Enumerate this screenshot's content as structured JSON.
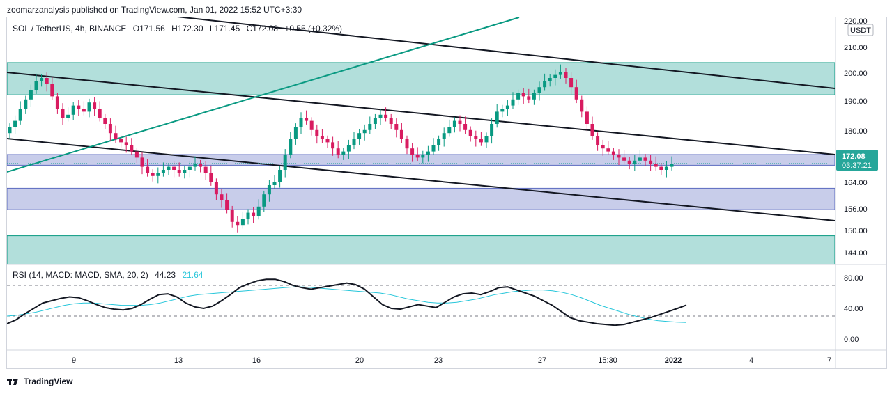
{
  "header": {
    "published_text": "zoomarzanalysis published on TradingView.com, Jan 01, 2022 15:52 UTC+3:30"
  },
  "legend": {
    "symbol": "SOL / TetherUS, 4h, BINANCE",
    "open": "O171.56",
    "high": "H172.30",
    "low": "L171.45",
    "close": "C172.08",
    "change": "+0.55 (+0.32%)"
  },
  "price_axis": {
    "currency_badge": "USDT",
    "ticks": [
      "220.00",
      "210.00",
      "200.00",
      "190.00",
      "180.00",
      "164.00",
      "156.00",
      "150.00",
      "144.00"
    ],
    "last_price": "172.08",
    "countdown": "03:37:21"
  },
  "rsi": {
    "legend": "RSI (14, MACD: MACD, SMA, 20, 2)",
    "value1": "44.23",
    "value2": "21.64",
    "ticks": [
      "80.00",
      "40.00",
      "0.00"
    ]
  },
  "time_axis": {
    "labels": [
      "9",
      "13",
      "16",
      "20",
      "23",
      "27",
      "15:30",
      "2022",
      "4",
      "7"
    ]
  },
  "footer": {
    "brand": "TradingView"
  },
  "colors": {
    "up": "#26a69a",
    "down": "#ef5350",
    "up_body": "#089981",
    "down_body": "#d81b60",
    "zone_green": "#b2dfdb",
    "zone_blue": "#c5cae9",
    "zone_blue_border": "#5c6bc0",
    "trend_black": "#131722",
    "trend_teal": "#089981",
    "rsi_line": "#131722",
    "rsi_signal": "#26c6da",
    "price_badge": "#26a69a"
  },
  "chart_data": {
    "type": "candlestick",
    "symbol": "SOL / TetherUS",
    "timeframe": "4h",
    "exchange": "BINANCE",
    "ylim": [
      140,
      222
    ],
    "x_labels": [
      "9",
      "13",
      "16",
      "20",
      "23",
      "27",
      "15:30",
      "2022",
      "4",
      "7"
    ],
    "closes": [
      184,
      186,
      190,
      193,
      196,
      199,
      200,
      198,
      194,
      190,
      187,
      188,
      191,
      190,
      189,
      192,
      190,
      187,
      185,
      182,
      180,
      179,
      178,
      176,
      174,
      171,
      169,
      168,
      169,
      170,
      171,
      170,
      169,
      170,
      171,
      172,
      171,
      169,
      166,
      162,
      160,
      157,
      153,
      152,
      154,
      156,
      155,
      158,
      162,
      165,
      166,
      170,
      175,
      180,
      184,
      187,
      186,
      183,
      181,
      180,
      179,
      177,
      175,
      176,
      178,
      180,
      182,
      183,
      185,
      187,
      188,
      187,
      185,
      183,
      180,
      177,
      175,
      174,
      175,
      176,
      178,
      180,
      182,
      184,
      186,
      185,
      183,
      181,
      180,
      179,
      181,
      185,
      189,
      190,
      191,
      193,
      195,
      194,
      193,
      195,
      197,
      199,
      200,
      201,
      202,
      200,
      197,
      193,
      189,
      185,
      181,
      178,
      177,
      176,
      175,
      174,
      173,
      172,
      173,
      174,
      173,
      172,
      171,
      170,
      171,
      172
    ],
    "zones": [
      {
        "kind": "resistance",
        "from": 194.5,
        "to": 205
      },
      {
        "kind": "range",
        "from": 171.5,
        "to": 175
      },
      {
        "kind": "support",
        "from": 157,
        "to": 164
      },
      {
        "kind": "support",
        "from": 138,
        "to": 148.5
      }
    ],
    "rsi": {
      "name": "RSI (14, MACD: MACD, SMA, 20, 2)",
      "ylim": [
        0,
        100
      ],
      "levels": [
        70,
        30
      ],
      "rsi_values": [
        20,
        25,
        33,
        40,
        47,
        50,
        53,
        55,
        54,
        50,
        45,
        41,
        39,
        38,
        40,
        45,
        52,
        58,
        59,
        55,
        47,
        42,
        40,
        43,
        50,
        58,
        67,
        72,
        76,
        78,
        78,
        75,
        70,
        67,
        65,
        67,
        69,
        71,
        73,
        71,
        65,
        55,
        45,
        40,
        39,
        42,
        45,
        43,
        41,
        48,
        55,
        59,
        60,
        58,
        62,
        67,
        68,
        64,
        60,
        56,
        50,
        44,
        36,
        28,
        24,
        22,
        20,
        19,
        18,
        19,
        22,
        25,
        28,
        32,
        36,
        40,
        44.23
      ],
      "signal_values": [
        30,
        31,
        33,
        35,
        38,
        41,
        44,
        46,
        47,
        47,
        46,
        45,
        44,
        44,
        44,
        45,
        47,
        50,
        53,
        56,
        58,
        59,
        60,
        61,
        62,
        63,
        64,
        65,
        66,
        67,
        68,
        68,
        67,
        66,
        65,
        64,
        63,
        62,
        61,
        60,
        58,
        55,
        52,
        50,
        48,
        47,
        47,
        48,
        50,
        52,
        55,
        58,
        60,
        62,
        63,
        64,
        64,
        63,
        61,
        58,
        54,
        49,
        44,
        40,
        36,
        32,
        29,
        26,
        24,
        23,
        22,
        21.64
      ]
    }
  }
}
